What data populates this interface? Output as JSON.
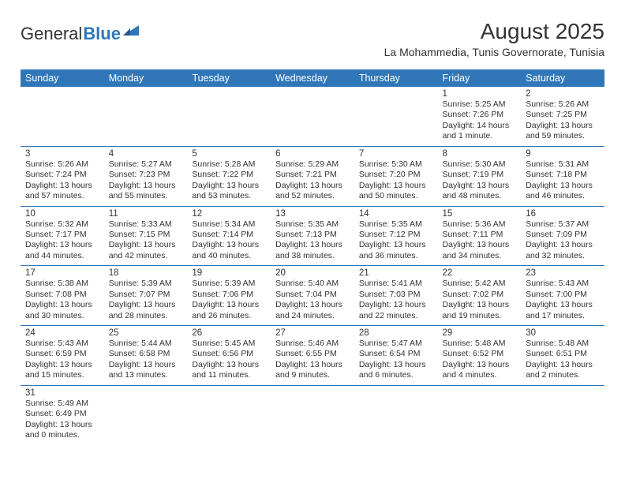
{
  "logo": {
    "text1": "General",
    "text2": "Blue"
  },
  "title": "August 2025",
  "subtitle": "La Mohammedia, Tunis Governorate, Tunisia",
  "colors": {
    "brand": "#2f77b8",
    "text": "#333333",
    "bg": "#ffffff"
  },
  "fonts": {
    "title_size": 28,
    "subtitle_size": 14,
    "header_size": 12.5,
    "cell_size": 10.5
  },
  "daysOfWeek": [
    "Sunday",
    "Monday",
    "Tuesday",
    "Wednesday",
    "Thursday",
    "Friday",
    "Saturday"
  ],
  "weeks": [
    [
      null,
      null,
      null,
      null,
      null,
      {
        "n": "1",
        "sr": "5:25 AM",
        "ss": "7:26 PM",
        "dl": "14 hours and 1 minute."
      },
      {
        "n": "2",
        "sr": "5:26 AM",
        "ss": "7:25 PM",
        "dl": "13 hours and 59 minutes."
      }
    ],
    [
      {
        "n": "3",
        "sr": "5:26 AM",
        "ss": "7:24 PM",
        "dl": "13 hours and 57 minutes."
      },
      {
        "n": "4",
        "sr": "5:27 AM",
        "ss": "7:23 PM",
        "dl": "13 hours and 55 minutes."
      },
      {
        "n": "5",
        "sr": "5:28 AM",
        "ss": "7:22 PM",
        "dl": "13 hours and 53 minutes."
      },
      {
        "n": "6",
        "sr": "5:29 AM",
        "ss": "7:21 PM",
        "dl": "13 hours and 52 minutes."
      },
      {
        "n": "7",
        "sr": "5:30 AM",
        "ss": "7:20 PM",
        "dl": "13 hours and 50 minutes."
      },
      {
        "n": "8",
        "sr": "5:30 AM",
        "ss": "7:19 PM",
        "dl": "13 hours and 48 minutes."
      },
      {
        "n": "9",
        "sr": "5:31 AM",
        "ss": "7:18 PM",
        "dl": "13 hours and 46 minutes."
      }
    ],
    [
      {
        "n": "10",
        "sr": "5:32 AM",
        "ss": "7:17 PM",
        "dl": "13 hours and 44 minutes."
      },
      {
        "n": "11",
        "sr": "5:33 AM",
        "ss": "7:15 PM",
        "dl": "13 hours and 42 minutes."
      },
      {
        "n": "12",
        "sr": "5:34 AM",
        "ss": "7:14 PM",
        "dl": "13 hours and 40 minutes."
      },
      {
        "n": "13",
        "sr": "5:35 AM",
        "ss": "7:13 PM",
        "dl": "13 hours and 38 minutes."
      },
      {
        "n": "14",
        "sr": "5:35 AM",
        "ss": "7:12 PM",
        "dl": "13 hours and 36 minutes."
      },
      {
        "n": "15",
        "sr": "5:36 AM",
        "ss": "7:11 PM",
        "dl": "13 hours and 34 minutes."
      },
      {
        "n": "16",
        "sr": "5:37 AM",
        "ss": "7:09 PM",
        "dl": "13 hours and 32 minutes."
      }
    ],
    [
      {
        "n": "17",
        "sr": "5:38 AM",
        "ss": "7:08 PM",
        "dl": "13 hours and 30 minutes."
      },
      {
        "n": "18",
        "sr": "5:39 AM",
        "ss": "7:07 PM",
        "dl": "13 hours and 28 minutes."
      },
      {
        "n": "19",
        "sr": "5:39 AM",
        "ss": "7:06 PM",
        "dl": "13 hours and 26 minutes."
      },
      {
        "n": "20",
        "sr": "5:40 AM",
        "ss": "7:04 PM",
        "dl": "13 hours and 24 minutes."
      },
      {
        "n": "21",
        "sr": "5:41 AM",
        "ss": "7:03 PM",
        "dl": "13 hours and 22 minutes."
      },
      {
        "n": "22",
        "sr": "5:42 AM",
        "ss": "7:02 PM",
        "dl": "13 hours and 19 minutes."
      },
      {
        "n": "23",
        "sr": "5:43 AM",
        "ss": "7:00 PM",
        "dl": "13 hours and 17 minutes."
      }
    ],
    [
      {
        "n": "24",
        "sr": "5:43 AM",
        "ss": "6:59 PM",
        "dl": "13 hours and 15 minutes."
      },
      {
        "n": "25",
        "sr": "5:44 AM",
        "ss": "6:58 PM",
        "dl": "13 hours and 13 minutes."
      },
      {
        "n": "26",
        "sr": "5:45 AM",
        "ss": "6:56 PM",
        "dl": "13 hours and 11 minutes."
      },
      {
        "n": "27",
        "sr": "5:46 AM",
        "ss": "6:55 PM",
        "dl": "13 hours and 9 minutes."
      },
      {
        "n": "28",
        "sr": "5:47 AM",
        "ss": "6:54 PM",
        "dl": "13 hours and 6 minutes."
      },
      {
        "n": "29",
        "sr": "5:48 AM",
        "ss": "6:52 PM",
        "dl": "13 hours and 4 minutes."
      },
      {
        "n": "30",
        "sr": "5:48 AM",
        "ss": "6:51 PM",
        "dl": "13 hours and 2 minutes."
      }
    ],
    [
      {
        "n": "31",
        "sr": "5:49 AM",
        "ss": "6:49 PM",
        "dl": "13 hours and 0 minutes."
      },
      null,
      null,
      null,
      null,
      null,
      null
    ]
  ],
  "labels": {
    "sunrise": "Sunrise:",
    "sunset": "Sunset:",
    "daylight": "Daylight:"
  }
}
